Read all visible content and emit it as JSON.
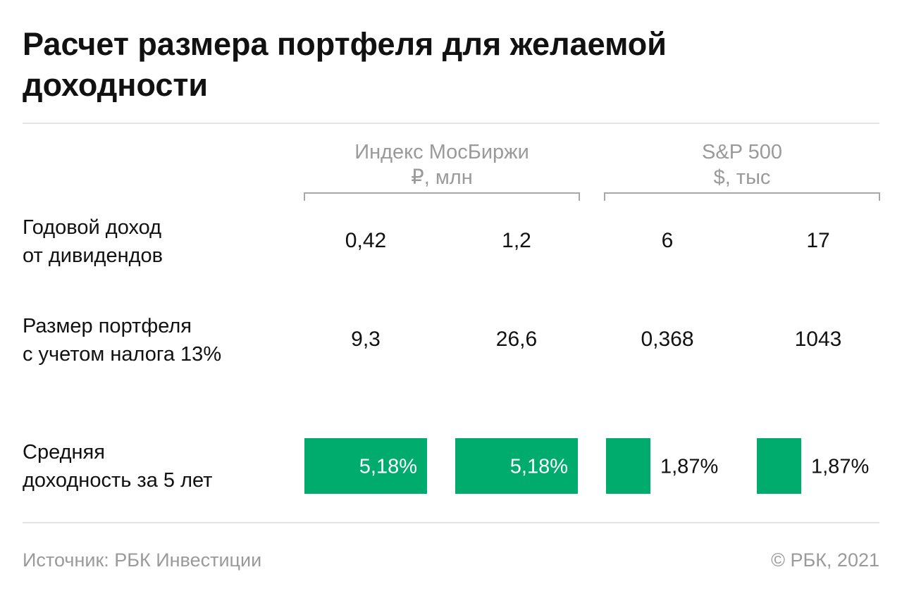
{
  "title": "Расчет размера портфеля для желаемой доходности",
  "groups": [
    {
      "name": "Индекс МосБиржи",
      "unit": "₽, млн"
    },
    {
      "name": "S&P 500",
      "unit": "$, тыс"
    }
  ],
  "rows": [
    {
      "label_line1": "Годовой доход",
      "label_line2": "от дивидендов",
      "values": [
        "0,42",
        "1,2",
        "6",
        "17"
      ]
    },
    {
      "label_line1": "Размер портфеля",
      "label_line2": "с учетом налога 13%",
      "values": [
        "9,3",
        "26,6",
        "0,368",
        "1043"
      ]
    }
  ],
  "yield_row": {
    "label_line1": "Средняя",
    "label_line2": "доходность за 5 лет"
  },
  "chart_data": {
    "type": "bar",
    "categories": [
      "Индекс МосБиржи",
      "Индекс МосБиржи",
      "S&P 500",
      "S&P 500"
    ],
    "values": [
      5.18,
      5.18,
      1.87,
      1.87
    ],
    "labels": [
      "5,18%",
      "5,18%",
      "1,87%",
      "1,87%"
    ],
    "bar_color": "#00ab6e",
    "xmax": 5.18
  },
  "footer": {
    "source": "Источник:  РБК Инвестиции",
    "copyright": "©  РБК, 2021"
  }
}
